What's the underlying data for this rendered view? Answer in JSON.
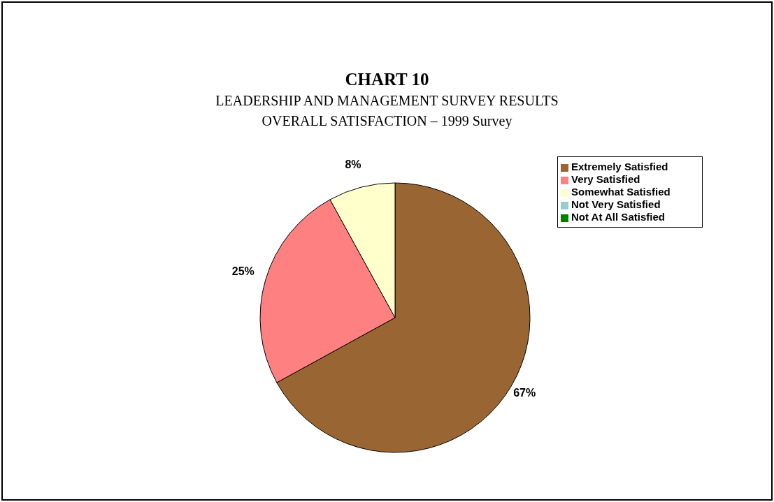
{
  "chart_data": {
    "type": "pie",
    "title": "CHART 10",
    "subtitle": "LEADERSHIP AND MANAGEMENT SURVEY RESULTS\nOVERALL SATISFACTION – 1999 Survey",
    "categories": [
      "Extremely Satisfied",
      "Very Satisfied",
      "Somewhat Satisfied",
      "Not Very Satisfied",
      "Not At All Satisfied"
    ],
    "values": [
      67,
      25,
      8,
      0,
      0
    ],
    "value_labels": [
      "67%",
      "25%",
      "8%",
      null,
      null
    ],
    "colors": [
      "#996633",
      "#ff8080",
      "#ffffcc",
      "#99cccc",
      "#008000"
    ],
    "legend": "right"
  }
}
